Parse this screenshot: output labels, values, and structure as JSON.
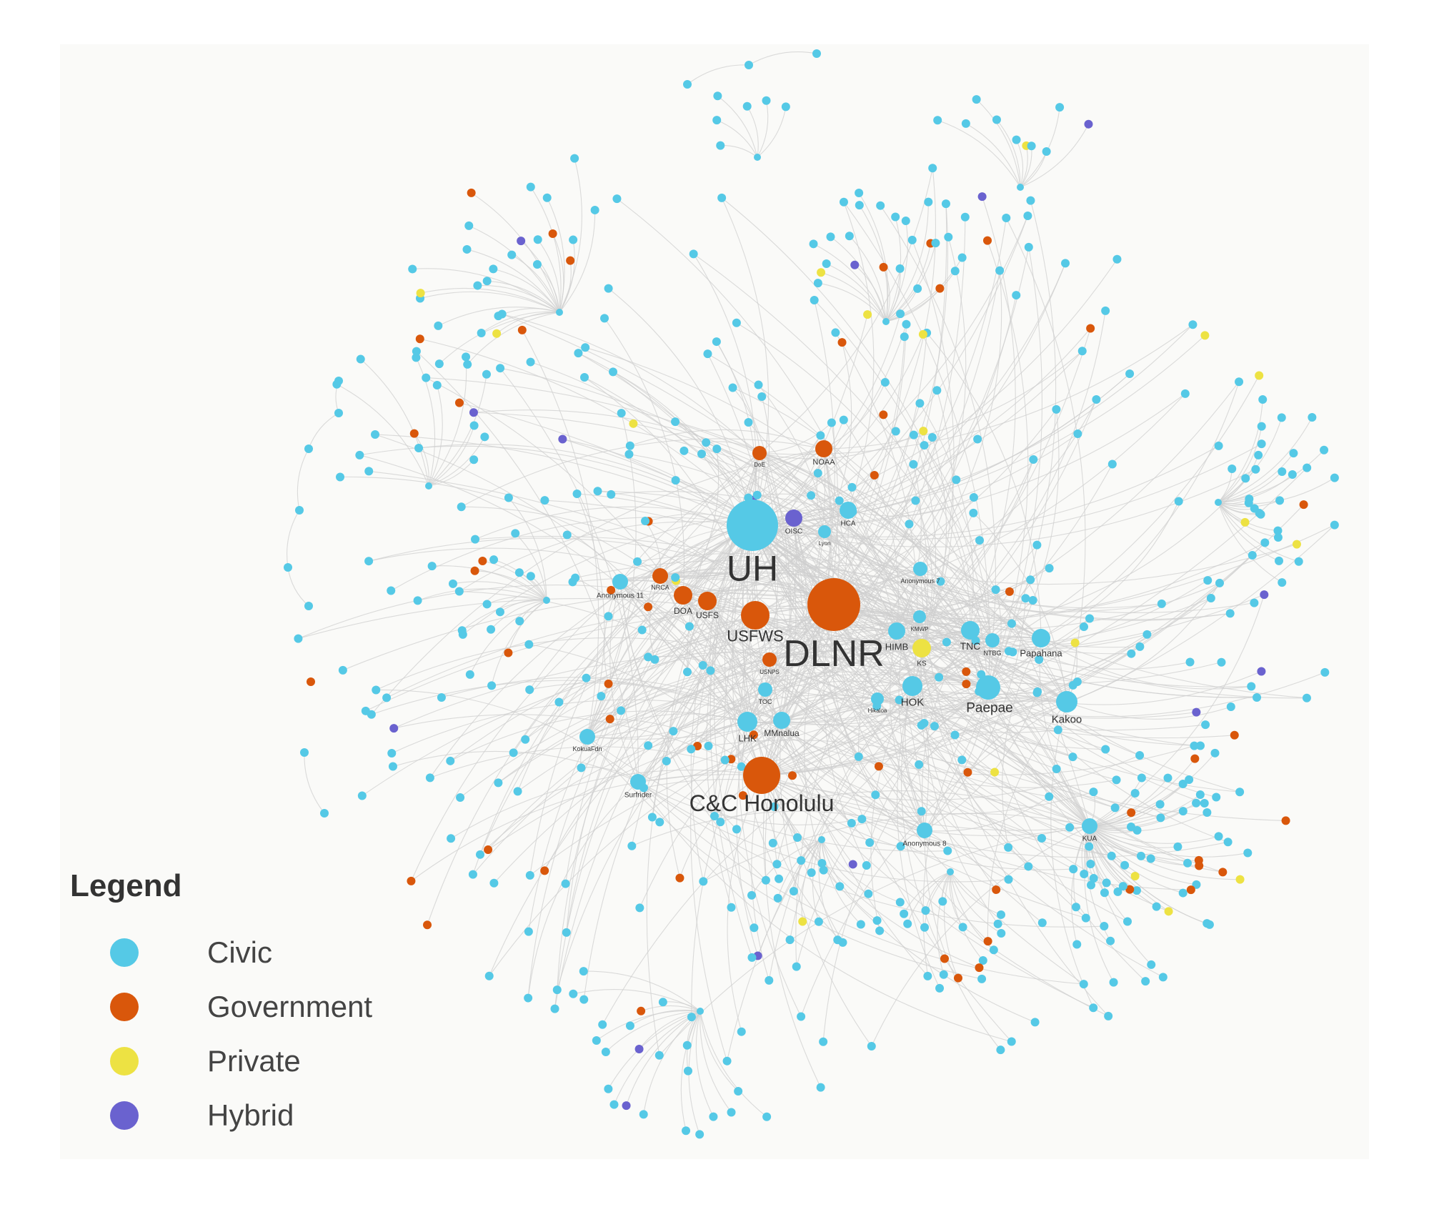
{
  "legend": {
    "title": "Legend",
    "items": [
      {
        "label": "Civic",
        "color": "#55c9e6"
      },
      {
        "label": "Government",
        "color": "#d9570b"
      },
      {
        "label": "Private",
        "color": "#ede243"
      },
      {
        "label": "Hybrid",
        "color": "#6a62cf"
      }
    ]
  },
  "hubs": [
    {
      "label": "UH",
      "type": "Civic"
    },
    {
      "label": "DLNR",
      "type": "Government"
    },
    {
      "label": "C&C Honolulu",
      "type": "Government"
    },
    {
      "label": "USFWS",
      "type": "Government"
    },
    {
      "label": "Paepae",
      "type": "Civic"
    },
    {
      "label": "Kakoo",
      "type": "Civic"
    },
    {
      "label": "HOK",
      "type": "Civic"
    },
    {
      "label": "TNC",
      "type": "Civic"
    },
    {
      "label": "Papahana",
      "type": "Civic"
    },
    {
      "label": "HIMB",
      "type": "Civic"
    },
    {
      "label": "KS",
      "type": "Private"
    },
    {
      "label": "LHK",
      "type": "Civic"
    },
    {
      "label": "MMnalua",
      "type": "Civic"
    },
    {
      "label": "DOA",
      "type": "Government"
    },
    {
      "label": "USFS",
      "type": "Government"
    },
    {
      "label": "NOAA",
      "type": "Government"
    },
    {
      "label": "HCA",
      "type": "Civic"
    },
    {
      "label": "OISC",
      "type": "Hybrid"
    },
    {
      "label": "NRCA",
      "type": "Government"
    },
    {
      "label": "Anonymous 11",
      "type": "Civic"
    },
    {
      "label": "Anonymous 7",
      "type": "Civic"
    },
    {
      "label": "Anonymous 8",
      "type": "Civic"
    },
    {
      "label": "Surfrider",
      "type": "Civic"
    },
    {
      "label": "KokuaFdn",
      "type": "Civic"
    },
    {
      "label": "KUA",
      "type": "Civic"
    },
    {
      "label": "NTBG",
      "type": "Civic"
    },
    {
      "label": "DoE",
      "type": "Government"
    },
    {
      "label": "USNPS",
      "type": "Government"
    },
    {
      "label": "TOC",
      "type": "Civic"
    },
    {
      "label": "Hikaloa",
      "type": "Civic"
    },
    {
      "label": "Lyon",
      "type": "Civic"
    },
    {
      "label": "KMWP",
      "type": "Civic"
    }
  ]
}
